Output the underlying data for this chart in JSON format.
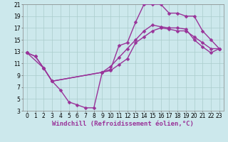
{
  "background_color": "#cce8ec",
  "grid_color": "#aacccc",
  "line_color": "#993399",
  "line_width": 1.0,
  "marker": "D",
  "marker_size": 2.5,
  "xlim": [
    -0.5,
    23.5
  ],
  "ylim": [
    3,
    21
  ],
  "xticks": [
    0,
    1,
    2,
    3,
    4,
    5,
    6,
    7,
    8,
    9,
    10,
    11,
    12,
    13,
    14,
    15,
    16,
    17,
    18,
    19,
    20,
    21,
    22,
    23
  ],
  "yticks": [
    3,
    5,
    7,
    9,
    11,
    13,
    15,
    17,
    19,
    21
  ],
  "xlabel": "Windchill (Refroidissement éolien,°C)",
  "xlabel_fontsize": 6.5,
  "tick_fontsize": 5.5,
  "line1_x": [
    0,
    1,
    2,
    3,
    4,
    5,
    6,
    7,
    8,
    9,
    10,
    11,
    12,
    13,
    14,
    15,
    16,
    17,
    18,
    19,
    20,
    21,
    22,
    23
  ],
  "line1_y": [
    12.8,
    12.2,
    10.2,
    8.0,
    6.5,
    4.5,
    4.0,
    3.5,
    3.5,
    9.5,
    9.8,
    10.8,
    11.8,
    14.5,
    15.5,
    16.5,
    17.0,
    16.8,
    16.5,
    16.5,
    15.5,
    14.5,
    13.5,
    13.5
  ],
  "line2_x": [
    0,
    1,
    2,
    3,
    9,
    10,
    11,
    12,
    13,
    14,
    15,
    16,
    17,
    18,
    19,
    20,
    21,
    22,
    23
  ],
  "line2_y": [
    12.8,
    12.2,
    10.2,
    8.0,
    9.5,
    10.0,
    14.0,
    14.5,
    18.0,
    21.0,
    21.0,
    21.0,
    19.5,
    19.5,
    19.0,
    19.0,
    16.5,
    15.0,
    13.5
  ],
  "line3_x": [
    0,
    2,
    3,
    9,
    10,
    11,
    12,
    13,
    14,
    15,
    16,
    17,
    18,
    19,
    20,
    21,
    22,
    23
  ],
  "line3_y": [
    12.8,
    10.2,
    8.0,
    9.5,
    10.5,
    12.0,
    13.5,
    15.0,
    16.5,
    17.5,
    17.2,
    17.0,
    17.0,
    16.8,
    15.0,
    13.8,
    12.8,
    13.5
  ]
}
